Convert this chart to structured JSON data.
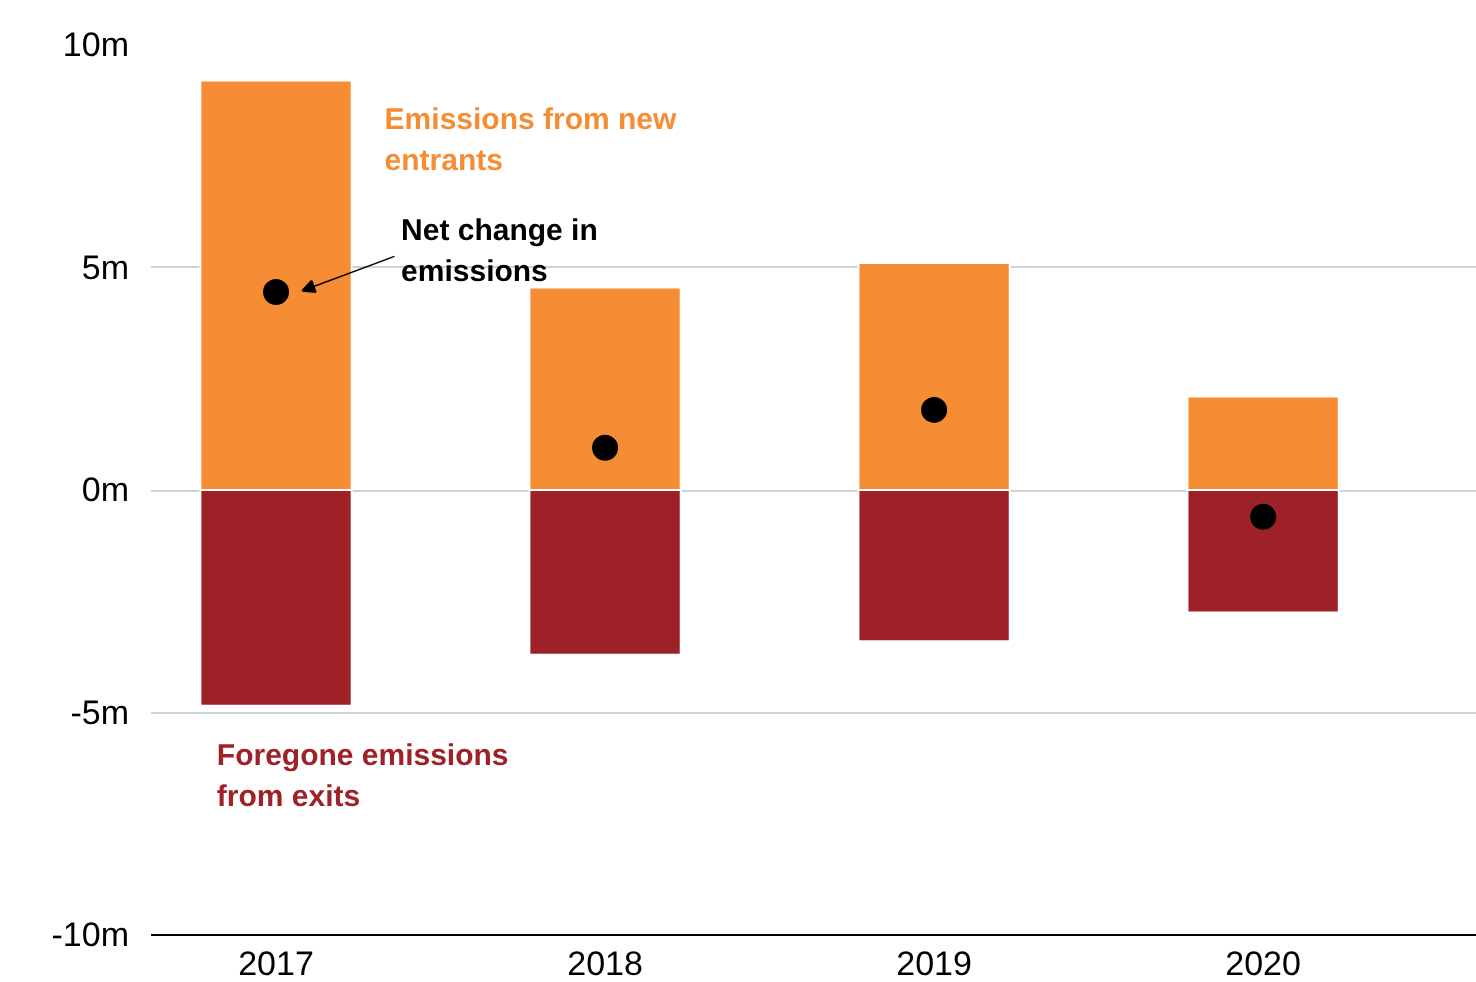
{
  "chart_data": {
    "type": "bar",
    "stacked": true,
    "categories": [
      "2017",
      "2018",
      "2019",
      "2020"
    ],
    "series": [
      {
        "name": "Emissions from new entrants",
        "color": "#f68d35",
        "values": [
          9.2,
          4.55,
          5.1,
          2.1
        ]
      },
      {
        "name": "Foregone emissions from exits",
        "color": "#9e2128",
        "values": [
          -4.85,
          -3.7,
          -3.4,
          -2.75
        ]
      },
      {
        "name": "Net change in emissions",
        "type": "scatter",
        "color": "#000000",
        "values": [
          4.45,
          0.95,
          1.8,
          -0.6
        ]
      }
    ],
    "ylim": [
      -10,
      10
    ],
    "yticks": [
      {
        "value": -10,
        "label": "-10m"
      },
      {
        "value": -5,
        "label": "-5m"
      },
      {
        "value": 0,
        "label": "0m"
      },
      {
        "value": 5,
        "label": "5m"
      },
      {
        "value": 10,
        "label": "10m"
      }
    ],
    "grid": "y",
    "marker": "circle"
  }
}
